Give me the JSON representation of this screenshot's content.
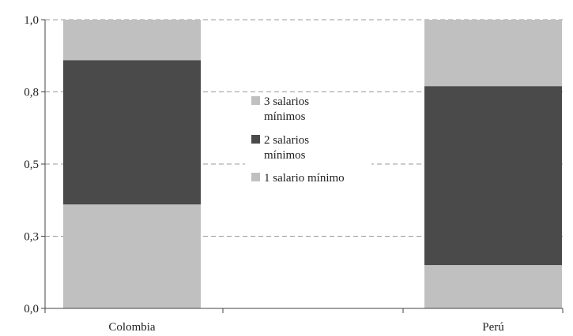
{
  "chart_data": {
    "type": "bar",
    "stacked": true,
    "categories": [
      "Colombia",
      "Perú"
    ],
    "series": [
      {
        "name": "1 salario mínimo",
        "values": [
          0.36,
          0.15
        ],
        "color": "#c0c0c0"
      },
      {
        "name": "2 salarios mínimos",
        "values": [
          0.5,
          0.62
        ],
        "color": "#4a4a4a"
      },
      {
        "name": "3 salarios mínimos",
        "values": [
          0.14,
          0.23
        ],
        "color": "#c0c0c0"
      }
    ],
    "legend": [
      {
        "lines": [
          "3 salarios",
          "mínimos"
        ],
        "color": "#c0c0c0"
      },
      {
        "lines": [
          "2 salarios",
          "mínimos"
        ],
        "color": "#4a4a4a"
      },
      {
        "lines": [
          "1 salario mínimo"
        ],
        "color": "#c0c0c0"
      }
    ],
    "y_ticks": [
      {
        "value": 0.0,
        "label": "0,0"
      },
      {
        "value": 0.25,
        "label": "0,3"
      },
      {
        "value": 0.5,
        "label": "0,5"
      },
      {
        "value": 0.75,
        "label": "0,8"
      },
      {
        "value": 1.0,
        "label": "1,0"
      }
    ],
    "ylim": [
      0,
      1
    ],
    "title": "",
    "xlabel": "",
    "ylabel": "",
    "grid": true,
    "legend_position": "center"
  }
}
